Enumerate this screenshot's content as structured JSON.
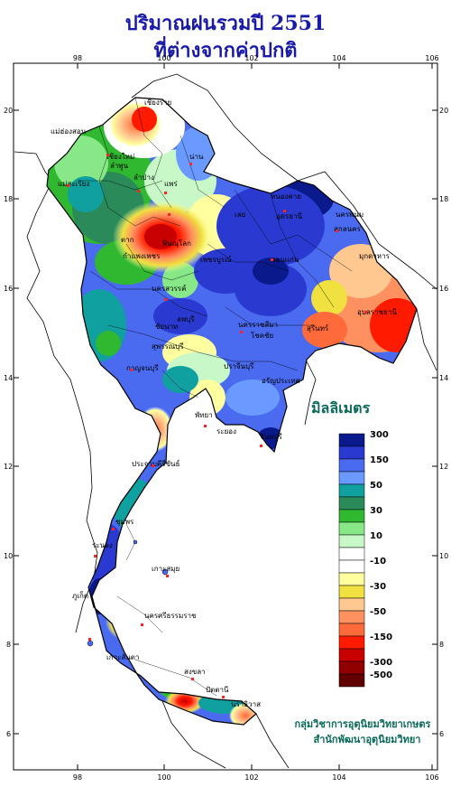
{
  "title": {
    "line1": "ปริมาณฝนรวมปี 2551",
    "line2": "ที่ต่างจากค่าปกติ"
  },
  "axes": {
    "top_ticks": [
      "98",
      "100",
      "102",
      "104",
      "106"
    ],
    "bottom_ticks": [
      "98",
      "100",
      "102",
      "104",
      "106"
    ],
    "left_ticks": [
      "20",
      "18",
      "16",
      "14",
      "12",
      "10",
      "8",
      "6"
    ],
    "right_ticks": [
      "20",
      "18",
      "16",
      "14",
      "12",
      "10",
      "8",
      "6"
    ]
  },
  "legend": {
    "title": "มิลลิเมตร",
    "classes": [
      {
        "color": "#0a1a8c",
        "label": "300"
      },
      {
        "color": "#2a3ad0",
        "label": ""
      },
      {
        "color": "#4a6af0",
        "label": "150"
      },
      {
        "color": "#6a9aff",
        "label": ""
      },
      {
        "color": "#10a0a0",
        "label": "50"
      },
      {
        "color": "#2a8a5a",
        "label": ""
      },
      {
        "color": "#30b830",
        "label": "30"
      },
      {
        "color": "#88e888",
        "label": ""
      },
      {
        "color": "#c8f8c8",
        "label": "10"
      },
      {
        "color": "#ffffff",
        "label": ""
      },
      {
        "color": "#ffffff",
        "label": "-10"
      },
      {
        "color": "#ffffa0",
        "label": ""
      },
      {
        "color": "#f0e040",
        "label": "-30"
      },
      {
        "color": "#ffc890",
        "label": ""
      },
      {
        "color": "#ff9060",
        "label": "-50"
      },
      {
        "color": "#ff6a3a",
        "label": ""
      },
      {
        "color": "#ff1a00",
        "label": "-150"
      },
      {
        "color": "#c80000",
        "label": ""
      },
      {
        "color": "#900000",
        "label": "-300"
      },
      {
        "color": "#600000",
        "label": "-500"
      }
    ]
  },
  "places": [
    "เชียงราย",
    "แม่ฮ่องสอน",
    "เชียงใหม่",
    "ลำพูน",
    "น่าน",
    "ลำปาง",
    "แพร่",
    "แม่สะเรียง",
    "หนองคาย",
    "อุดรธานี",
    "นครพนม",
    "สกลนคร",
    "ตาก",
    "พิษณุโลก",
    "เลย",
    "มุกดาหาร",
    "ขอนแก่น",
    "กำแพงเพชร",
    "เพชรบูรณ์",
    "นครสวรรค์",
    "อุบลราชธานี",
    "สุรินทร์",
    "นครราชสีมา",
    "โชคชัย",
    "ลพบุรี",
    "ชัยนาท",
    "สุพรรณบุรี",
    "กาญจนบุรี",
    "ปราจีนบุรี",
    "อรัญประเทศ",
    "พัทยา",
    "ระยอง",
    "จันทบุรี",
    "ประจวบคีรีขันธ์",
    "ชุมพร",
    "ระนอง",
    "เกาะสมุย",
    "ภูเก็ต",
    "นครศรีธรรมราช",
    "สงขลา",
    "ปัตตานี",
    "นราธิวาส",
    "เกาะลันตา"
  ],
  "credits": {
    "line1": "กลุ่มวิชาการอุตุนิยมวิทยาเกษตร",
    "line2": "สำนักพัฒนาอุตุนิยมวิทยา"
  }
}
